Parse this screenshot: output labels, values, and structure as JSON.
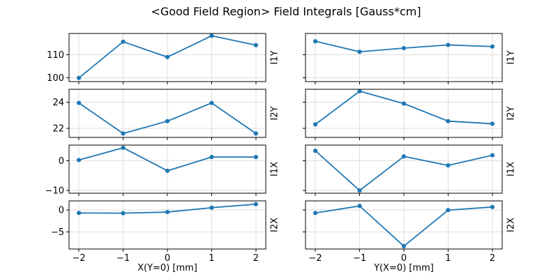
{
  "title": "<Good Field Region> Field Integrals [Gauss*cm]",
  "colors": {
    "line": "#1f77b4",
    "grid": "#dedede",
    "axis": "#000000",
    "text": "#000000",
    "background": "#ffffff"
  },
  "chart_data": [
    {
      "type": "line",
      "title": "<Good Field Region> Field Integrals [Gauss*cm]",
      "xlabel": "X(Y=0) [mm]",
      "ylabel": "",
      "x": [
        -2,
        -1,
        0,
        1,
        2
      ],
      "xticks": [
        -2,
        -1,
        0,
        1,
        2
      ],
      "grid": true,
      "legend": false,
      "marker": "circle",
      "series": [
        {
          "name": "I1Y",
          "values": [
            99.9,
            115.7,
            109.0,
            118.3,
            114.2
          ],
          "yticks": [
            100,
            110
          ],
          "ylim": [
            98.3,
            119.3
          ]
        },
        {
          "name": "I2Y",
          "values": [
            23.95,
            21.6,
            22.55,
            23.95,
            21.6
          ],
          "yticks": [
            22,
            24
          ],
          "ylim": [
            21.3,
            25.0
          ]
        },
        {
          "name": "I1X",
          "values": [
            0.2,
            4.3,
            -3.4,
            1.2,
            1.2
          ],
          "yticks": [
            -10,
            0
          ],
          "ylim": [
            -10.9,
            5.2
          ]
        },
        {
          "name": "I2X",
          "values": [
            -0.65,
            -0.7,
            -0.45,
            0.55,
            1.35
          ],
          "yticks": [
            -5,
            0
          ],
          "ylim": [
            -8.85,
            2.1
          ]
        }
      ]
    },
    {
      "type": "line",
      "title": "<Good Field Region> Field Integrals [Gauss*cm]",
      "xlabel": "Y(X=0) [mm]",
      "ylabel": "",
      "x": [
        -2,
        -1,
        0,
        1,
        2
      ],
      "xticks": [
        -2,
        -1,
        0,
        1,
        2
      ],
      "grid": true,
      "legend": false,
      "marker": "circle",
      "series": [
        {
          "name": "I1Y",
          "values": [
            115.9,
            111.3,
            112.9,
            114.3,
            113.6
          ],
          "yticks": [
            100,
            110
          ],
          "ylim": [
            98.3,
            119.3
          ]
        },
        {
          "name": "I2Y",
          "values": [
            22.3,
            24.85,
            23.9,
            22.55,
            22.35
          ],
          "yticks": [
            22,
            24
          ],
          "ylim": [
            21.3,
            25.0
          ]
        },
        {
          "name": "I1X",
          "values": [
            3.3,
            -10.0,
            1.4,
            -1.6,
            1.8
          ],
          "yticks": [
            -10,
            0
          ],
          "ylim": [
            -10.9,
            5.2
          ]
        },
        {
          "name": "I2X",
          "values": [
            -0.65,
            0.95,
            -8.2,
            0.0,
            0.7
          ],
          "yticks": [
            -5,
            0
          ],
          "ylim": [
            -8.85,
            2.1
          ]
        }
      ]
    }
  ]
}
